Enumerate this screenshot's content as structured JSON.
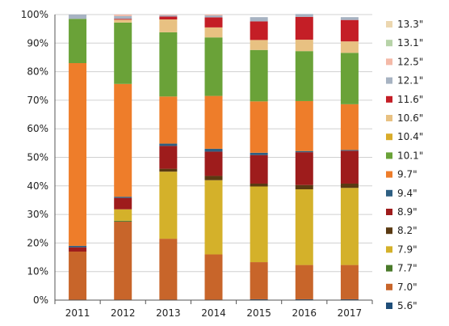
{
  "chart_data": {
    "type": "bar",
    "stacked": true,
    "normalized": true,
    "categories": [
      "2011",
      "2012",
      "2013",
      "2014",
      "2015",
      "2016",
      "2017"
    ],
    "ylim": [
      0,
      100
    ],
    "y_ticks": [
      "0%",
      "10%",
      "20%",
      "30%",
      "40%",
      "50%",
      "60%",
      "70%",
      "80%",
      "90%",
      "100%"
    ],
    "grid": "horizontal",
    "legend_position": "right",
    "series": [
      {
        "name": "5.6\"",
        "color": "#1f4e79",
        "values": [
          0,
          0,
          0,
          0,
          0.3,
          0.3,
          0.3
        ]
      },
      {
        "name": "7.0\"",
        "color": "#c8652a",
        "values": [
          17,
          27.5,
          21.5,
          16,
          13,
          12,
          12
        ]
      },
      {
        "name": "7.7\"",
        "color": "#4a7a2a",
        "values": [
          0,
          0.3,
          0,
          0,
          0,
          0,
          0
        ]
      },
      {
        "name": "7.9\"",
        "color": "#d4b12a",
        "values": [
          0,
          4,
          23.5,
          26,
          26.5,
          26.5,
          27
        ]
      },
      {
        "name": "8.2\"",
        "color": "#5a3a12",
        "values": [
          0,
          0,
          1,
          1.5,
          1,
          1.5,
          1.5
        ]
      },
      {
        "name": "8.9\"",
        "color": "#9e1c1c",
        "values": [
          1.5,
          4,
          8,
          8.5,
          10,
          11.5,
          11.5
        ]
      },
      {
        "name": "9.4\"",
        "color": "#2e5f82",
        "values": [
          0.5,
          0.4,
          0.8,
          1,
          0.8,
          0.4,
          0.3
        ]
      },
      {
        "name": "9.7\"",
        "color": "#ee7d2a",
        "values": [
          64,
          39.5,
          16.5,
          18.5,
          18,
          17.5,
          16
        ]
      },
      {
        "name": "10.1\"",
        "color": "#6aa238",
        "values": [
          15.5,
          21.5,
          22.5,
          20.5,
          18,
          17.5,
          18
        ]
      },
      {
        "name": "10.4\"",
        "color": "#d9ac2a",
        "values": [
          0,
          0,
          0,
          0,
          0,
          0,
          0
        ]
      },
      {
        "name": "10.6\"",
        "color": "#e8c182",
        "values": [
          0,
          1,
          4.5,
          3.5,
          3.5,
          4,
          4
        ]
      },
      {
        "name": "11.6\"",
        "color": "#c41e26",
        "values": [
          0,
          0.3,
          1,
          3.5,
          6.5,
          8,
          7.5
        ]
      },
      {
        "name": "12.1\"",
        "color": "#a7b3c2",
        "values": [
          1.5,
          1,
          0.5,
          0.7,
          1.5,
          1,
          1
        ]
      },
      {
        "name": "12.5\"",
        "color": "#f4b9a7",
        "values": [
          0,
          0.5,
          0.2,
          0.3,
          0,
          0,
          0
        ]
      },
      {
        "name": "13.1\"",
        "color": "#b7d3a8",
        "values": [
          0,
          0,
          0,
          0,
          0,
          0,
          0
        ]
      },
      {
        "name": "13.3\"",
        "color": "#ecd7b0",
        "values": [
          0,
          0,
          0,
          0,
          0,
          0,
          0
        ]
      }
    ]
  }
}
